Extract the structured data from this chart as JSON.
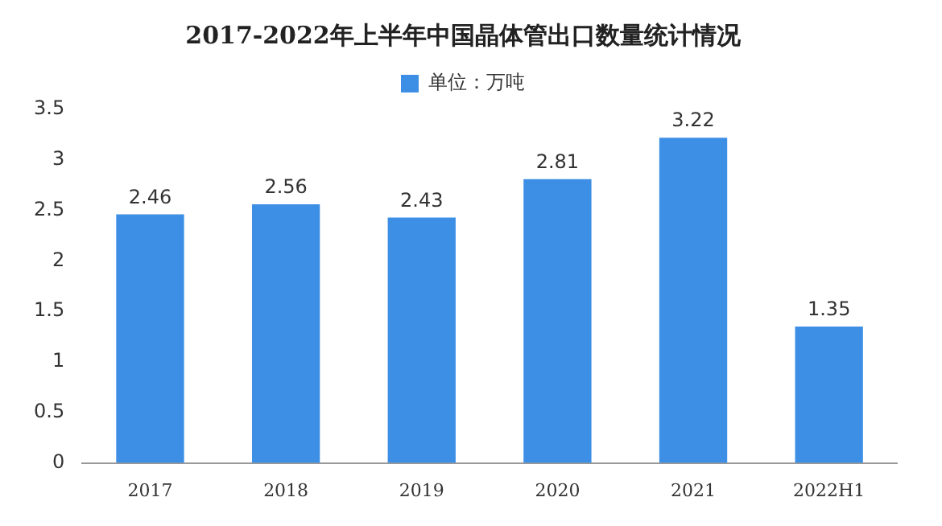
{
  "chart_data": {
    "type": "bar",
    "title": "2017-2022年上半年中国晶体管出口数量统计情况",
    "categories": [
      "2017",
      "2018",
      "2019",
      "2020",
      "2021",
      "2022H1"
    ],
    "series": [
      {
        "name": "单位：万吨",
        "color": "#3d8fe6",
        "values": [
          2.46,
          2.56,
          2.43,
          2.81,
          3.22,
          1.35
        ]
      }
    ],
    "ylim": [
      0,
      3.5
    ],
    "yticks": [
      0,
      0.5,
      1,
      1.5,
      2,
      2.5,
      3,
      3.5
    ],
    "grid": false,
    "legend": "top",
    "data_labels": true
  }
}
